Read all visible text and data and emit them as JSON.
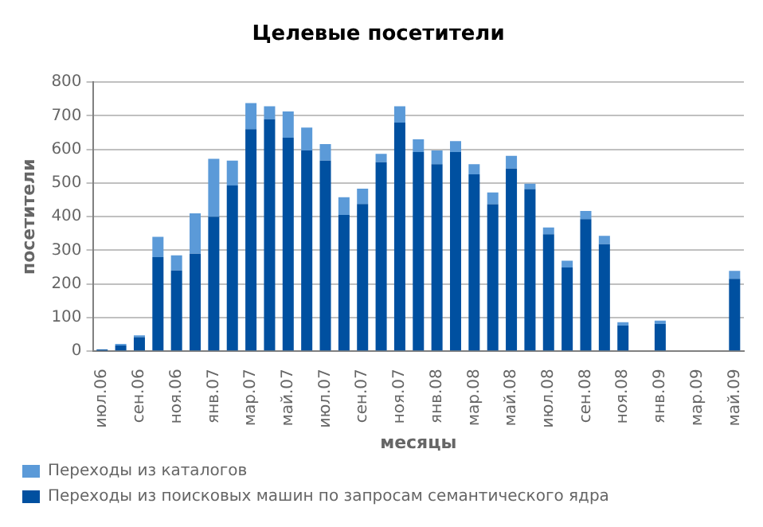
{
  "chart_data": {
    "type": "bar",
    "stacked": true,
    "title": "Целевые посетители",
    "xlabel": "месяцы",
    "ylabel": "посетители",
    "categories": [
      "июл.06",
      null,
      "сен.06",
      null,
      "ноя.06",
      null,
      "янв.07",
      null,
      "мар.07",
      null,
      "май.07",
      null,
      "июл.07",
      null,
      "сен.07",
      null,
      "ноя.07",
      null,
      "янв.08",
      null,
      "мар.08",
      null,
      "май.08",
      null,
      "июл.08",
      null,
      "сен.08",
      null,
      "ноя.08",
      null,
      "янв.09",
      null,
      "мар.09",
      null,
      "май.09"
    ],
    "series": [
      {
        "name": "Переходы из поисковых машин по запросам семантического ядра",
        "color": "#0050a0",
        "values": [
          5,
          17,
          42,
          280,
          240,
          290,
          400,
          493,
          660,
          690,
          635,
          597,
          567,
          405,
          438,
          562,
          680,
          592,
          556,
          592,
          526,
          437,
          543,
          482,
          348,
          249,
          393,
          318,
          76,
          0,
          81,
          0,
          0,
          0,
          215
        ]
      },
      {
        "name": "Переходы из каталогов",
        "color": "#5b9ad8",
        "values": [
          0,
          5,
          5,
          60,
          45,
          120,
          172,
          74,
          78,
          38,
          78,
          68,
          49,
          53,
          45,
          25,
          48,
          38,
          41,
          33,
          30,
          35,
          38,
          16,
          20,
          20,
          24,
          25,
          10,
          0,
          10,
          0,
          0,
          0,
          24
        ]
      }
    ],
    "ylim": [
      0,
      800
    ],
    "yticks": [
      0,
      100,
      200,
      300,
      400,
      500,
      600,
      700,
      800
    ],
    "grid": "y",
    "legend": "bottom"
  }
}
